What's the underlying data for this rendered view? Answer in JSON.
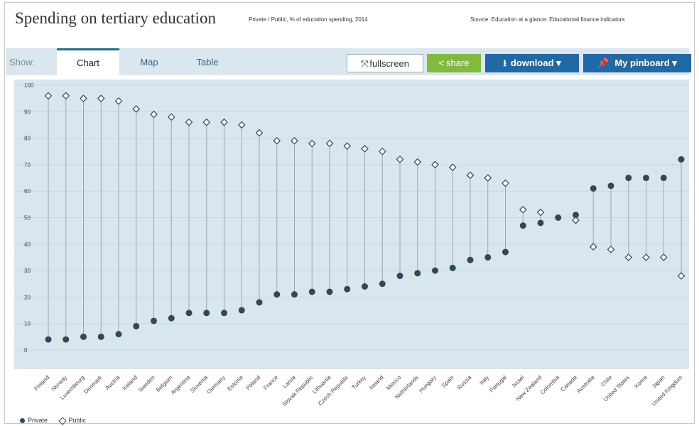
{
  "header": {
    "title": "Spending on tertiary education",
    "subtitle": "Private / Public, % of education spending, 2014",
    "source": "Source: Education at a glance: Educational finance indicators"
  },
  "toolbar": {
    "show_label": "Show:",
    "tabs": [
      {
        "label": "Chart"
      },
      {
        "label": "Map"
      },
      {
        "label": "Table"
      }
    ],
    "fullscreen_label": "fullscreen",
    "share_label": "share",
    "download_label": "download ▾",
    "pinboard_label": "My pinboard ▾"
  },
  "legend": {
    "private_label": "Private",
    "public_label": "Public"
  },
  "colors": {
    "plot_bg": "#d9e6ee",
    "private": "#2c4a5e",
    "public_stroke": "#2c4a5e",
    "accent": "#1f6aa6",
    "share": "#82bb3c"
  },
  "icons": {
    "fullscreen": "expand-icon",
    "share": "share-icon",
    "download": "download-icon",
    "pinboard": "pin-icon"
  },
  "chart_data": {
    "type": "scatter",
    "ylim": [
      0,
      100
    ],
    "yticks": [
      0,
      10,
      20,
      30,
      40,
      50,
      60,
      70,
      80,
      90,
      100
    ],
    "grid": true,
    "legend_position": "bottom-left",
    "categories": [
      "Finland",
      "Norway",
      "Luxembourg",
      "Denmark",
      "Austria",
      "Iceland",
      "Sweden",
      "Belgium",
      "Argentina",
      "Slovenia",
      "Germany",
      "Estonia",
      "Poland",
      "France",
      "Latvia",
      "Slovak Republic",
      "Lithuania",
      "Czech Republic",
      "Turkey",
      "Ireland",
      "Mexico",
      "Netherlands",
      "Hungary",
      "Spain",
      "Russia",
      "Italy",
      "Portugal",
      "Israel",
      "New Zealand",
      "Colombia",
      "Canada",
      "Australia",
      "Chile",
      "United States",
      "Korea",
      "Japan",
      "United Kingdom"
    ],
    "series": [
      {
        "name": "Private",
        "values": [
          4,
          4,
          5,
          5,
          6,
          9,
          11,
          12,
          14,
          14,
          14,
          15,
          18,
          21,
          21,
          22,
          22,
          23,
          24,
          25,
          28,
          29,
          30,
          31,
          34,
          35,
          37,
          47,
          48,
          50,
          51,
          61,
          62,
          65,
          65,
          65,
          72
        ]
      },
      {
        "name": "Public",
        "values": [
          96,
          96,
          95,
          95,
          94,
          91,
          89,
          88,
          86,
          86,
          86,
          85,
          82,
          79,
          79,
          78,
          78,
          77,
          76,
          75,
          72,
          71,
          70,
          69,
          66,
          65,
          63,
          53,
          52,
          null,
          49,
          39,
          38,
          35,
          35,
          35,
          28
        ]
      }
    ]
  }
}
